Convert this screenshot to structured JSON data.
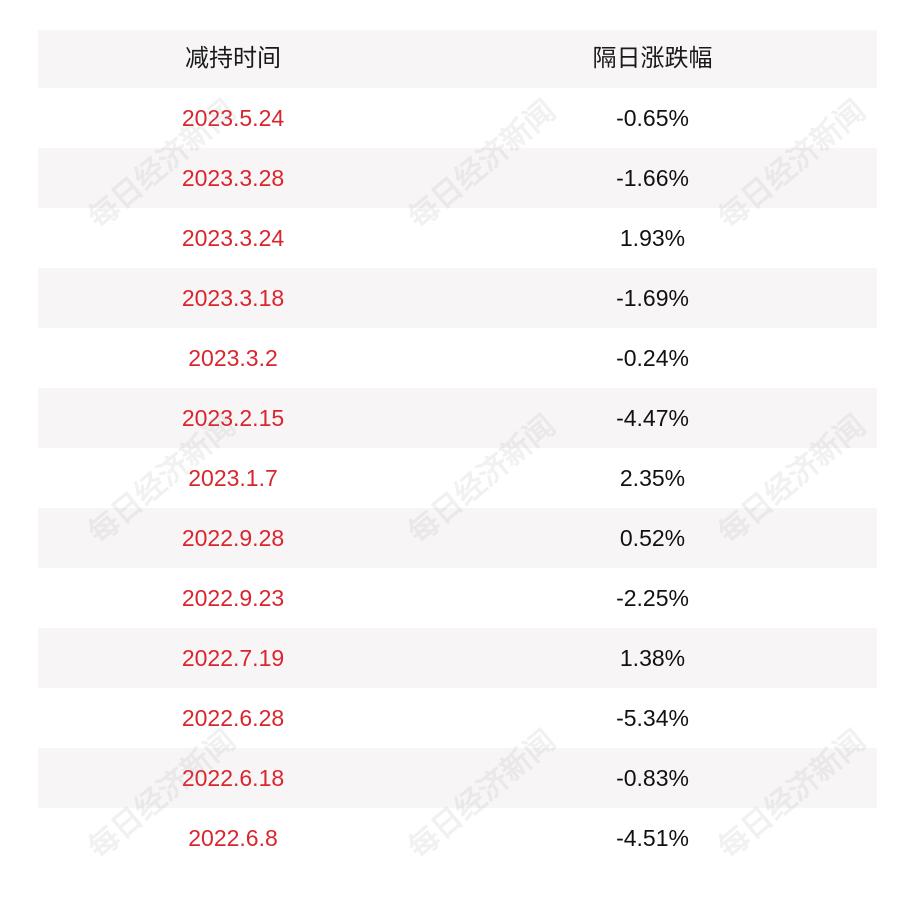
{
  "table": {
    "headers": {
      "date": "减持时间",
      "change": "隔日涨跌幅"
    },
    "rows": [
      {
        "date": "2023.5.24",
        "change": "-0.65%"
      },
      {
        "date": "2023.3.28",
        "change": "-1.66%"
      },
      {
        "date": "2023.3.24",
        "change": "1.93%"
      },
      {
        "date": "2023.3.18",
        "change": "-1.69%"
      },
      {
        "date": "2023.3.2",
        "change": "-0.24%"
      },
      {
        "date": "2023.2.15",
        "change": "-4.47%"
      },
      {
        "date": "2023.1.7",
        "change": "2.35%"
      },
      {
        "date": "2022.9.28",
        "change": "0.52%"
      },
      {
        "date": "2022.9.23",
        "change": "-2.25%"
      },
      {
        "date": "2022.7.19",
        "change": "1.38%"
      },
      {
        "date": "2022.6.28",
        "change": "-5.34%"
      },
      {
        "date": "2022.6.18",
        "change": "-0.83%"
      },
      {
        "date": "2022.6.8",
        "change": "-4.51%"
      }
    ]
  },
  "colors": {
    "date_text": "#d9262e",
    "change_text": "#111111",
    "band": "#f8f5f6"
  },
  "watermark": {
    "text": "每日经济新闻"
  }
}
